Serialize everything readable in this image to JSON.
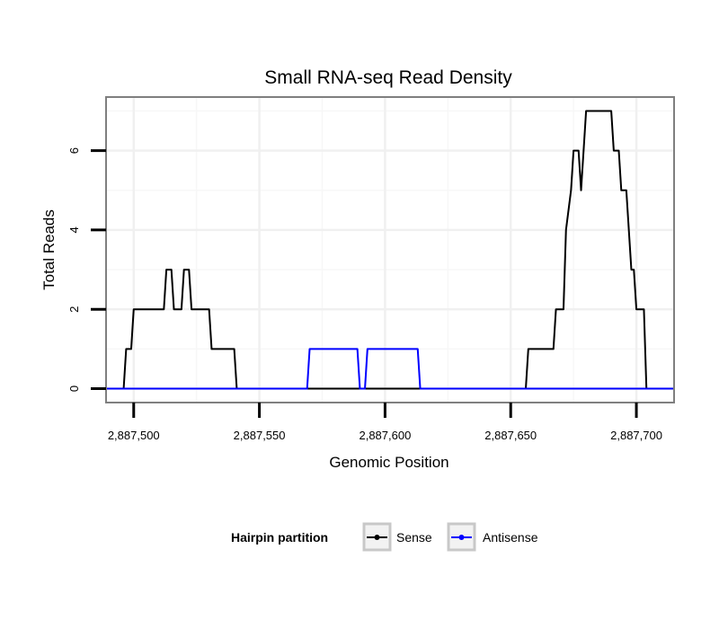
{
  "chart_data": {
    "type": "line",
    "title": "Small RNA-seq Read Density",
    "xlabel": "Genomic Position",
    "ylabel": "Total Reads",
    "xlim": [
      2887489,
      2887715
    ],
    "ylim": [
      -0.35,
      7.35
    ],
    "grid": true,
    "legend_position": "bottom",
    "legend": {
      "title": "Hairpin partition",
      "entries": [
        "Sense",
        "Antisense"
      ]
    },
    "x_ticks": [
      {
        "value": 2887500,
        "label": "2,887,500"
      },
      {
        "value": 2887550,
        "label": "2,887,550"
      },
      {
        "value": 2887600,
        "label": "2,887,600"
      },
      {
        "value": 2887650,
        "label": "2,887,650"
      },
      {
        "value": 2887700,
        "label": "2,887,700"
      }
    ],
    "y_ticks": [
      {
        "value": 0,
        "label": "0"
      },
      {
        "value": 2,
        "label": "2"
      },
      {
        "value": 4,
        "label": "4"
      },
      {
        "value": 6,
        "label": "6"
      }
    ],
    "series": [
      {
        "name": "Sense",
        "color": "#000000",
        "x": [
          2887489,
          2887496,
          2887497,
          2887499,
          2887500,
          2887512,
          2887513,
          2887515,
          2887516,
          2887519,
          2887520,
          2887522,
          2887523,
          2887530,
          2887531,
          2887540,
          2887541,
          2887656,
          2887657,
          2887667,
          2887668,
          2887671,
          2887672,
          2887674,
          2887675,
          2887677,
          2887678,
          2887680,
          2887681,
          2887690,
          2887691,
          2887693,
          2887694,
          2887696,
          2887697,
          2887698,
          2887699,
          2887700,
          2887701,
          2887703,
          2887704,
          2887715
        ],
        "y": [
          0,
          0,
          1,
          1,
          2,
          2,
          3,
          3,
          2,
          2,
          3,
          3,
          2,
          2,
          1,
          1,
          0,
          0,
          1,
          1,
          2,
          2,
          4,
          5,
          6,
          6,
          5,
          7,
          7,
          7,
          6,
          6,
          5,
          5,
          4,
          3,
          3,
          2,
          2,
          2,
          0,
          0
        ]
      },
      {
        "name": "Antisense",
        "color": "#0000ff",
        "x": [
          2887489,
          2887569,
          2887570,
          2887589,
          2887590,
          2887592,
          2887593,
          2887613,
          2887614,
          2887715
        ],
        "y": [
          0,
          0,
          1,
          1,
          0,
          0,
          1,
          1,
          0,
          0
        ]
      }
    ]
  }
}
